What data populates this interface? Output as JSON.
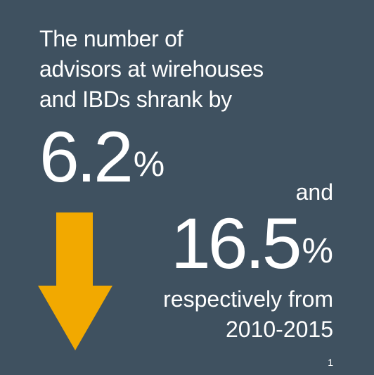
{
  "colors": {
    "background": "#3f5160",
    "arrow": "#f2a900",
    "text": "#ffffff"
  },
  "icon": "down-arrow-icon",
  "intro": {
    "line1": "The number of",
    "line2": "advisors at wirehouses",
    "line3": "and IBDs shrank by"
  },
  "stat1": {
    "value": "6.2",
    "unit": "%"
  },
  "connector": "and",
  "stat2": {
    "value": "16.5",
    "unit": "%"
  },
  "footer": {
    "line1": "respectively from",
    "line2": "2010-2015",
    "footnote": "1"
  }
}
